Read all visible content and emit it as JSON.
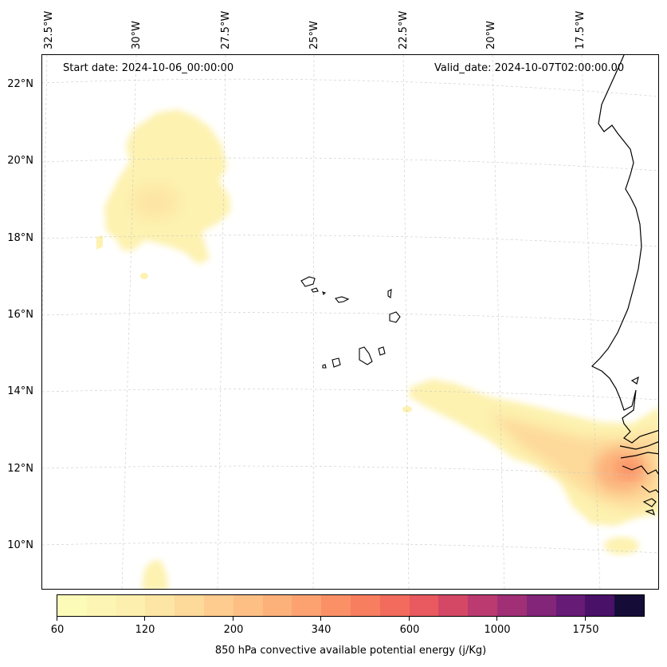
{
  "map": {
    "start_date": "Start date: 2024-10-06_00:00:00",
    "valid_date": "Valid_date: 2024-10-07T02:00:00.00",
    "lon_labels": [
      "32.5°W",
      "30°W",
      "27.5°W",
      "25°W",
      "22.5°W",
      "20°W",
      "17.5°W"
    ],
    "lat_labels": [
      "22°N",
      "20°N",
      "18°N",
      "16°N",
      "14°N",
      "12°N",
      "10°N"
    ],
    "gridlines": true,
    "coastline_color": "#000000"
  },
  "colorbar": {
    "title": "850 hPa convective available potential energy (j/Kg)",
    "tick_labels": [
      "60",
      "120",
      "200",
      "340",
      "600",
      "1000",
      "1750"
    ],
    "colors": [
      "#fdfbb8",
      "#fdf5b3",
      "#fdefae",
      "#fde6a5",
      "#fdd99a",
      "#fdcc8e",
      "#fdbf84",
      "#fcb17a",
      "#fca270",
      "#fb9067",
      "#f87e60",
      "#f26b5d",
      "#e85a5f",
      "#d44866",
      "#bb3a70",
      "#a02f76",
      "#832578",
      "#661b76",
      "#4a1168",
      "#150d37"
    ]
  }
}
